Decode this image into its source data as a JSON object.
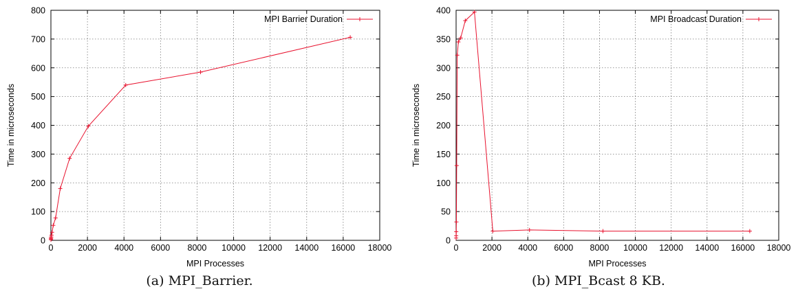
{
  "chart_data": [
    {
      "type": "line",
      "caption": "(a) MPI_Barrier.",
      "xlabel": "MPI Processes",
      "ylabel": "Time in microseconds",
      "xlim": [
        0,
        18000
      ],
      "ylim": [
        0,
        800
      ],
      "xticks": [
        0,
        2000,
        4000,
        6000,
        8000,
        10000,
        12000,
        14000,
        16000,
        18000
      ],
      "yticks": [
        0,
        100,
        200,
        300,
        400,
        500,
        600,
        700,
        800
      ],
      "grid": true,
      "legend_position": "top-right",
      "series": [
        {
          "name": "MPI Barrier Duration",
          "color": "#e8112d",
          "marker": "plus",
          "x": [
            2,
            4,
            8,
            16,
            32,
            64,
            128,
            256,
            512,
            1024,
            2048,
            4096,
            8192,
            16384
          ],
          "y": [
            2,
            5,
            8,
            12,
            18,
            28,
            52,
            78,
            180,
            285,
            397,
            540,
            585,
            706
          ]
        }
      ]
    },
    {
      "type": "line",
      "caption": "(b) MPI_Bcast 8 KB.",
      "xlabel": "MPI Processes",
      "ylabel": "Time in microseconds",
      "xlim": [
        0,
        18000
      ],
      "ylim": [
        0,
        400
      ],
      "xticks": [
        0,
        2000,
        4000,
        6000,
        8000,
        10000,
        12000,
        14000,
        16000,
        18000
      ],
      "yticks": [
        0,
        50,
        100,
        150,
        200,
        250,
        300,
        350,
        400
      ],
      "grid": true,
      "legend_position": "top-right",
      "series": [
        {
          "name": "MPI Broadcast Duration",
          "color": "#e8112d",
          "marker": "plus",
          "x": [
            2,
            4,
            8,
            16,
            32,
            64,
            128,
            256,
            512,
            1024,
            2048,
            4096,
            8192,
            16384
          ],
          "y": [
            4,
            8,
            15,
            32,
            130,
            322,
            345,
            352,
            382,
            397,
            16,
            18,
            16,
            16
          ]
        }
      ]
    }
  ]
}
